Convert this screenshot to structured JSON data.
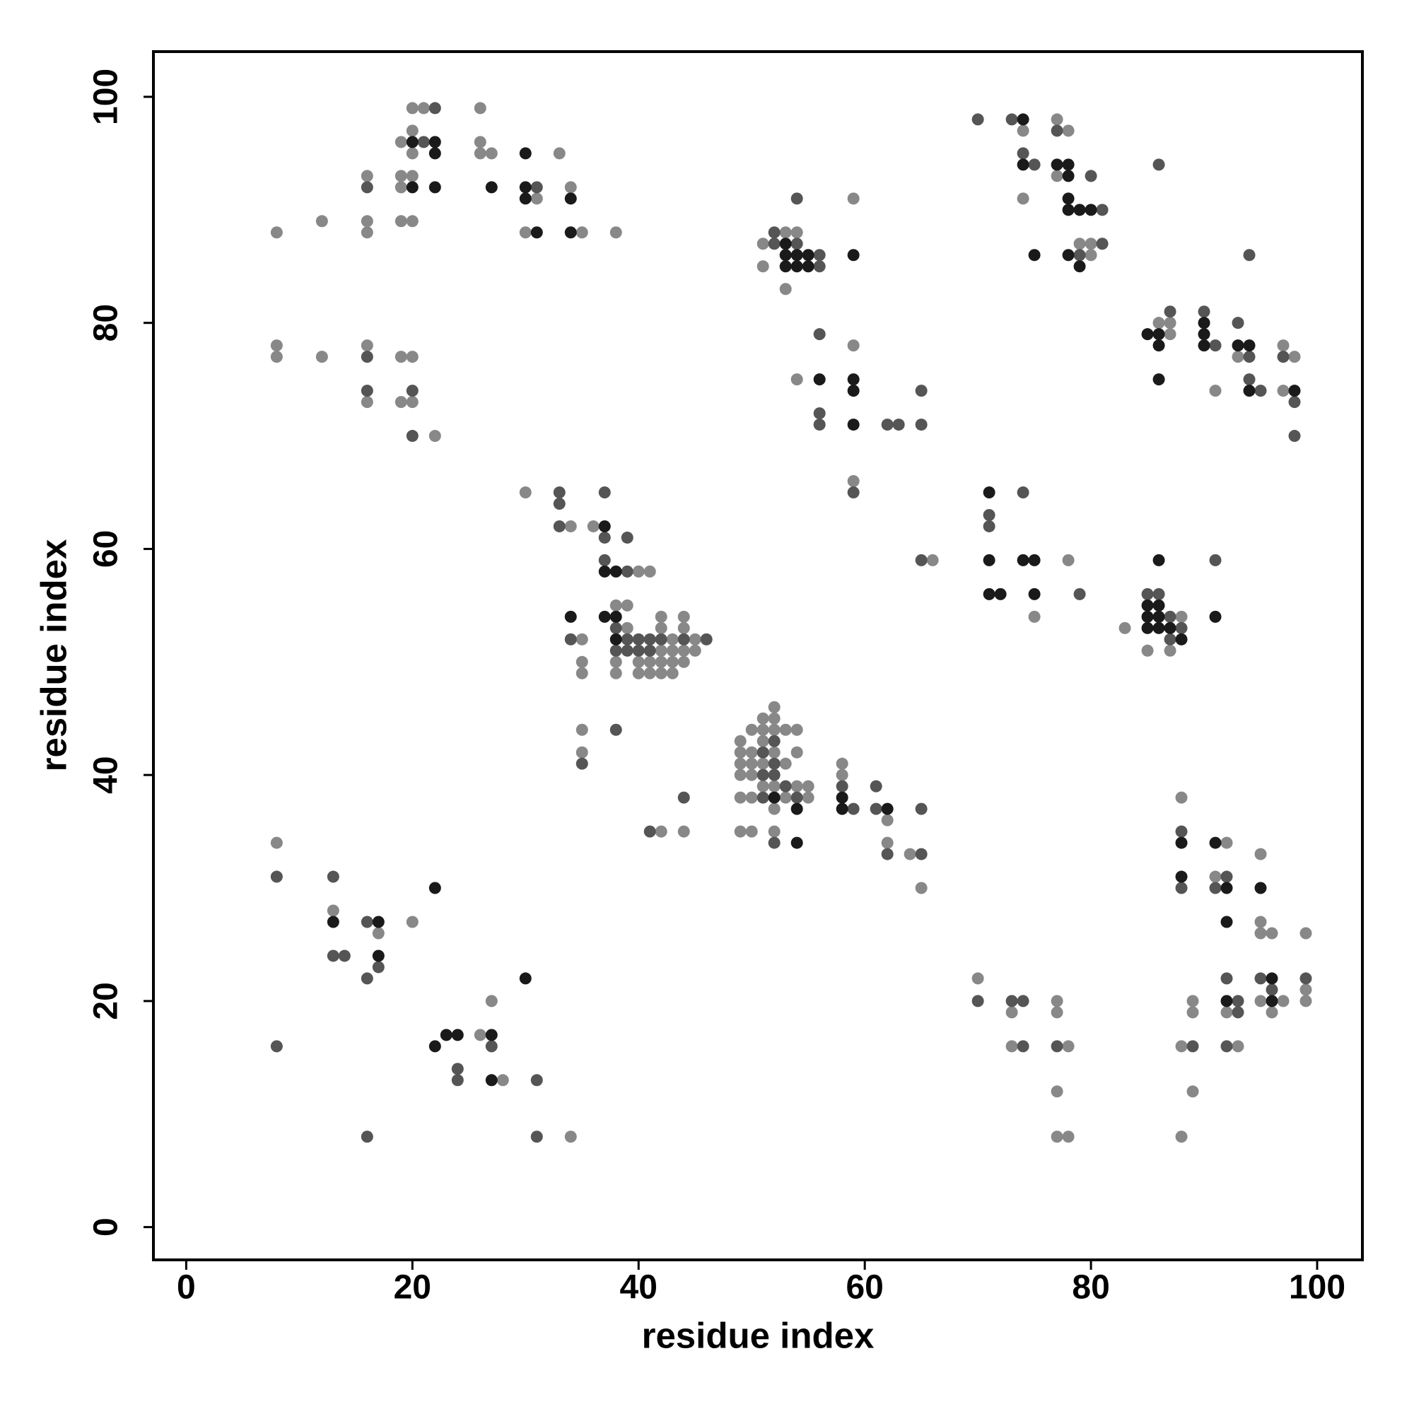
{
  "chart_data": {
    "type": "scatter",
    "xlabel": "residue index",
    "ylabel": "residue index",
    "xlim": [
      -2.9,
      104
    ],
    "ylim": [
      -2.9,
      104
    ],
    "xticks": [
      0,
      20,
      40,
      60,
      80,
      100
    ],
    "yticks": [
      0,
      20,
      40,
      60,
      80,
      100
    ],
    "series": [
      {
        "color": "#888888",
        "x": [
          8,
          12,
          16,
          16,
          16,
          19,
          19,
          19,
          19,
          20,
          20,
          20,
          20,
          20,
          21,
          26,
          26,
          26,
          27,
          30,
          31,
          33,
          34,
          35,
          38,
          8,
          8,
          12,
          16,
          16,
          19,
          19,
          20,
          20,
          22,
          51,
          51,
          53,
          53,
          54,
          59,
          54,
          59,
          59,
          74,
          74,
          77,
          77,
          78,
          79,
          80,
          80,
          86,
          87,
          87,
          91,
          93,
          97,
          97,
          98,
          30,
          34,
          36,
          40,
          41,
          35,
          35,
          35,
          38,
          38,
          38,
          39,
          39,
          40,
          40,
          41,
          41,
          42,
          42,
          42,
          42,
          42,
          43,
          43,
          43,
          43,
          44,
          44,
          44,
          44,
          45,
          45,
          35,
          35,
          42,
          44,
          49,
          49,
          49,
          49,
          49,
          49,
          50,
          50,
          50,
          50,
          50,
          50,
          51,
          51,
          51,
          51,
          51,
          52,
          52,
          52,
          52,
          52,
          52,
          52,
          53,
          53,
          53,
          54,
          54,
          54,
          55,
          55,
          58,
          58,
          62,
          62,
          64,
          65,
          66,
          75,
          78,
          83,
          85,
          87,
          88,
          8,
          13,
          17,
          20,
          26,
          27,
          28,
          34,
          70,
          73,
          73,
          77,
          77,
          77,
          77,
          78,
          78,
          88,
          88,
          88,
          89,
          89,
          89,
          91,
          92,
          92,
          93,
          95,
          95,
          95,
          95,
          96,
          96,
          97,
          99,
          99,
          99
        ],
        "values": [
          88,
          89,
          89,
          88,
          93,
          96,
          93,
          92,
          89,
          99,
          97,
          95,
          93,
          89,
          99,
          99,
          96,
          95,
          95,
          88,
          91,
          95,
          92,
          88,
          88,
          78,
          77,
          77,
          78,
          73,
          77,
          73,
          77,
          73,
          70,
          87,
          85,
          88,
          83,
          88,
          91,
          75,
          78,
          66,
          97,
          91,
          98,
          93,
          97,
          87,
          87,
          86,
          80,
          80,
          79,
          74,
          77,
          78,
          74,
          77,
          65,
          62,
          62,
          58,
          58,
          52,
          50,
          49,
          55,
          50,
          49,
          55,
          53,
          50,
          49,
          50,
          49,
          54,
          53,
          51,
          50,
          49,
          52,
          51,
          50,
          49,
          54,
          53,
          51,
          50,
          52,
          51,
          44,
          42,
          35,
          35,
          43,
          42,
          41,
          40,
          38,
          35,
          44,
          42,
          41,
          40,
          38,
          35,
          45,
          44,
          43,
          41,
          39,
          46,
          45,
          44,
          42,
          39,
          37,
          35,
          44,
          41,
          38,
          44,
          42,
          39,
          39,
          38,
          41,
          40,
          36,
          34,
          33,
          30,
          59,
          54,
          59,
          53,
          51,
          51,
          54,
          34,
          28,
          26,
          27,
          17,
          20,
          13,
          8,
          22,
          19,
          16,
          20,
          19,
          12,
          8,
          16,
          8,
          38,
          16,
          8,
          20,
          19,
          12,
          31,
          34,
          19,
          16,
          33,
          27,
          26,
          20,
          26,
          19,
          20,
          26,
          21,
          20
        ]
      },
      {
        "color": "#555555",
        "x": [
          16,
          21,
          22,
          31,
          16,
          16,
          20,
          20,
          52,
          52,
          54,
          54,
          56,
          56,
          56,
          56,
          56,
          59,
          62,
          63,
          65,
          65,
          70,
          73,
          74,
          75,
          77,
          79,
          80,
          81,
          81,
          86,
          94,
          87,
          90,
          91,
          93,
          94,
          94,
          95,
          97,
          98,
          98,
          33,
          33,
          33,
          37,
          37,
          37,
          39,
          39,
          34,
          38,
          38,
          39,
          39,
          40,
          40,
          41,
          41,
          42,
          44,
          46,
          35,
          38,
          41,
          44,
          51,
          51,
          51,
          52,
          52,
          52,
          52,
          53,
          54,
          58,
          59,
          61,
          61,
          62,
          65,
          65,
          65,
          71,
          71,
          74,
          79,
          85,
          86,
          87,
          87,
          88,
          91,
          8,
          8,
          13,
          13,
          14,
          16,
          16,
          16,
          17,
          24,
          24,
          27,
          31,
          31,
          70,
          73,
          74,
          74,
          77,
          88,
          88,
          89,
          91,
          92,
          92,
          92,
          93,
          93,
          95,
          96,
          99
        ],
        "values": [
          92,
          96,
          99,
          92,
          77,
          74,
          74,
          70,
          88,
          87,
          91,
          87,
          86,
          85,
          79,
          72,
          71,
          65,
          71,
          71,
          74,
          71,
          98,
          98,
          95,
          94,
          97,
          86,
          93,
          90,
          87,
          94,
          86,
          81,
          81,
          78,
          80,
          77,
          75,
          74,
          77,
          73,
          70,
          65,
          64,
          62,
          65,
          61,
          59,
          61,
          58,
          52,
          53,
          51,
          52,
          51,
          52,
          51,
          52,
          51,
          52,
          52,
          52,
          41,
          44,
          35,
          38,
          42,
          40,
          38,
          43,
          41,
          40,
          34,
          39,
          38,
          39,
          37,
          39,
          37,
          33,
          37,
          33,
          59,
          63,
          62,
          65,
          56,
          56,
          56,
          54,
          52,
          53,
          59,
          31,
          16,
          31,
          24,
          24,
          27,
          22,
          8,
          23,
          14,
          13,
          16,
          13,
          8,
          20,
          20,
          20,
          16,
          16,
          35,
          30,
          16,
          30,
          31,
          22,
          16,
          20,
          19,
          22,
          21,
          22
        ]
      },
      {
        "color": "#1a1a1a",
        "x": [
          20,
          20,
          22,
          22,
          22,
          27,
          30,
          30,
          30,
          31,
          34,
          34,
          53,
          53,
          53,
          54,
          54,
          55,
          55,
          59,
          56,
          59,
          59,
          59,
          74,
          74,
          75,
          77,
          78,
          78,
          78,
          78,
          78,
          79,
          79,
          80,
          85,
          86,
          86,
          86,
          90,
          90,
          90,
          93,
          94,
          94,
          98,
          37,
          37,
          38,
          34,
          37,
          38,
          38,
          52,
          54,
          54,
          58,
          58,
          62,
          71,
          71,
          71,
          72,
          74,
          75,
          75,
          85,
          85,
          85,
          86,
          86,
          86,
          86,
          87,
          88,
          91,
          13,
          17,
          17,
          22,
          22,
          23,
          24,
          27,
          27,
          30,
          88,
          88,
          91,
          92,
          92,
          92,
          95,
          96,
          96
        ],
        "values": [
          96,
          92,
          96,
          95,
          92,
          92,
          95,
          92,
          91,
          88,
          91,
          88,
          87,
          86,
          85,
          86,
          85,
          86,
          85,
          86,
          75,
          75,
          74,
          71,
          98,
          94,
          86,
          94,
          94,
          93,
          91,
          90,
          86,
          90,
          85,
          90,
          79,
          79,
          78,
          75,
          80,
          79,
          78,
          78,
          78,
          74,
          74,
          62,
          58,
          58,
          54,
          54,
          54,
          52,
          38,
          37,
          34,
          38,
          37,
          37,
          65,
          59,
          56,
          56,
          59,
          59,
          56,
          55,
          54,
          53,
          59,
          55,
          54,
          53,
          53,
          52,
          54,
          27,
          27,
          24,
          30,
          16,
          17,
          17,
          17,
          13,
          22,
          34,
          31,
          34,
          30,
          27,
          20,
          30,
          22,
          20
        ]
      }
    ]
  }
}
